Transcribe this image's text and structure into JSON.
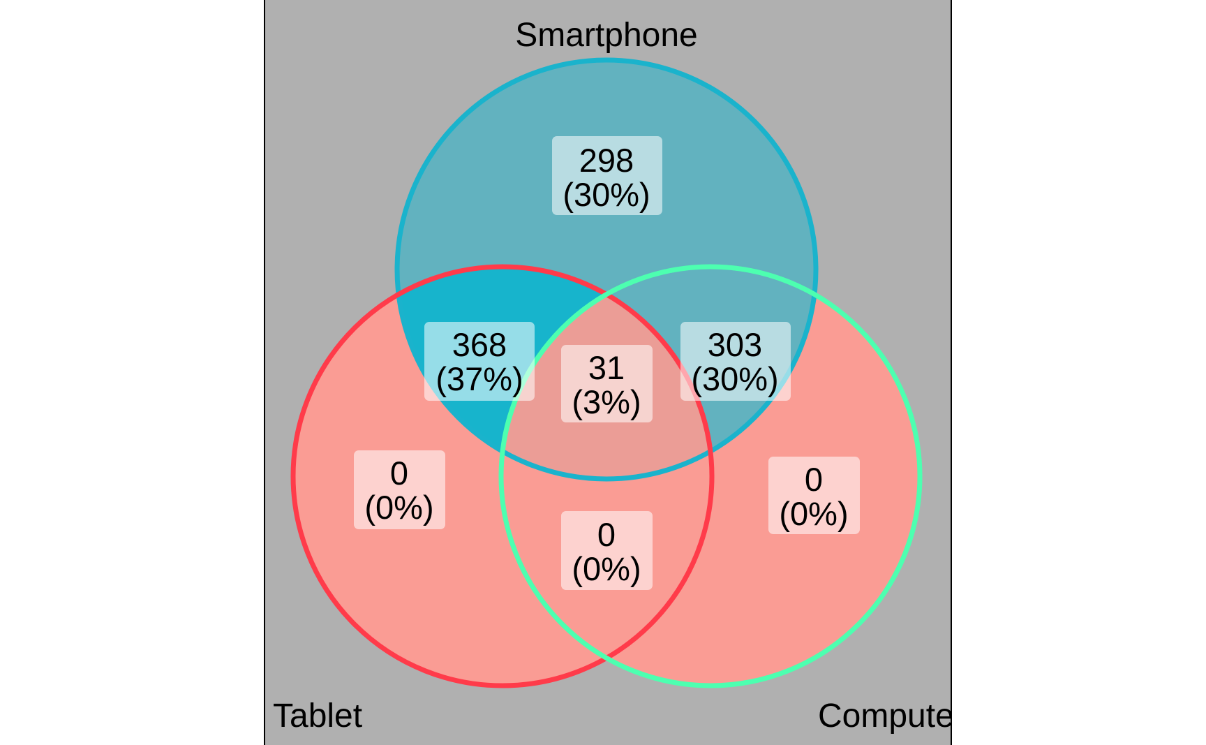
{
  "diagram": {
    "type": "venn",
    "panel_background": "#b0b0b0",
    "sets": [
      {
        "key": "smartphone",
        "name": "Smartphone",
        "edge_color": "#1ab3cc"
      },
      {
        "key": "tablet",
        "name": "Tablet",
        "edge_color": "#ff3b4a"
      },
      {
        "key": "computer",
        "name": "Computer",
        "edge_color": "#4dffb0"
      }
    ],
    "regions": [
      {
        "id": "smartphone-only",
        "sets": [
          "smartphone"
        ],
        "count": "298",
        "percent": "(30%)"
      },
      {
        "id": "smartphone-tablet",
        "sets": [
          "smartphone",
          "tablet"
        ],
        "count": "368",
        "percent": "(37%)"
      },
      {
        "id": "smartphone-computer",
        "sets": [
          "smartphone",
          "computer"
        ],
        "count": "303",
        "percent": "(30%)"
      },
      {
        "id": "all-three",
        "sets": [
          "smartphone",
          "tablet",
          "computer"
        ],
        "count": "31",
        "percent": "(3%)"
      },
      {
        "id": "tablet-only",
        "sets": [
          "tablet"
        ],
        "count": "0",
        "percent": "(0%)"
      },
      {
        "id": "computer-only",
        "sets": [
          "computer"
        ],
        "count": "0",
        "percent": "(0%)"
      },
      {
        "id": "tablet-computer",
        "sets": [
          "tablet",
          "computer"
        ],
        "count": "0",
        "percent": "(0%)"
      }
    ]
  }
}
